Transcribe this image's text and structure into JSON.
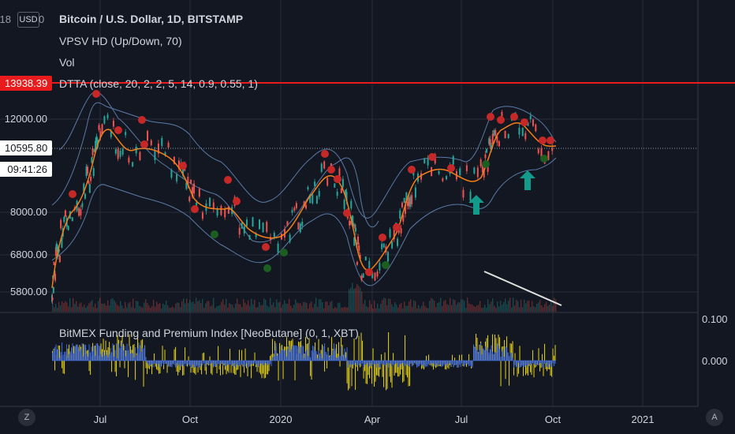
{
  "header": {
    "symbol_title": "Bitcoin / U.S. Dollar, 1D, BITSTAMP",
    "currency_button": "USD",
    "indicators": [
      "VPSV HD (Up/Down, 70)",
      "Vol",
      "DTTA (close, 20, 2, 2, 5, 14, 0.9, 0.55, 1)"
    ]
  },
  "price_axis": {
    "labels": [
      "12000.00",
      "8000.00",
      "6800.00",
      "5800.00"
    ],
    "top_partial_left": "18",
    "top_partial_right": "0"
  },
  "price_tags": {
    "horizontal_line_price": "13938.39",
    "last_price": "10595.80",
    "countdown": "09:41:26"
  },
  "lower_pane": {
    "title": "BitMEX Funding and Premium Index [NeoButane] (0, 1, XBT)",
    "axis_labels": [
      "0.100",
      "0.000"
    ]
  },
  "time_axis": {
    "labels": [
      "Jul",
      "Oct",
      "2020",
      "Apr",
      "Jul",
      "Oct",
      "2021"
    ]
  },
  "footer": {
    "left_button": "Z",
    "right_button": "A"
  },
  "colors": {
    "background": "#131722",
    "red_line": "#e81c1c",
    "ma_line": "#f57f17",
    "band_line": "#5b7aa6",
    "arrow": "#129a8a",
    "funding_positive": "#d4c417",
    "funding_blue": "#3f6ff0"
  }
}
